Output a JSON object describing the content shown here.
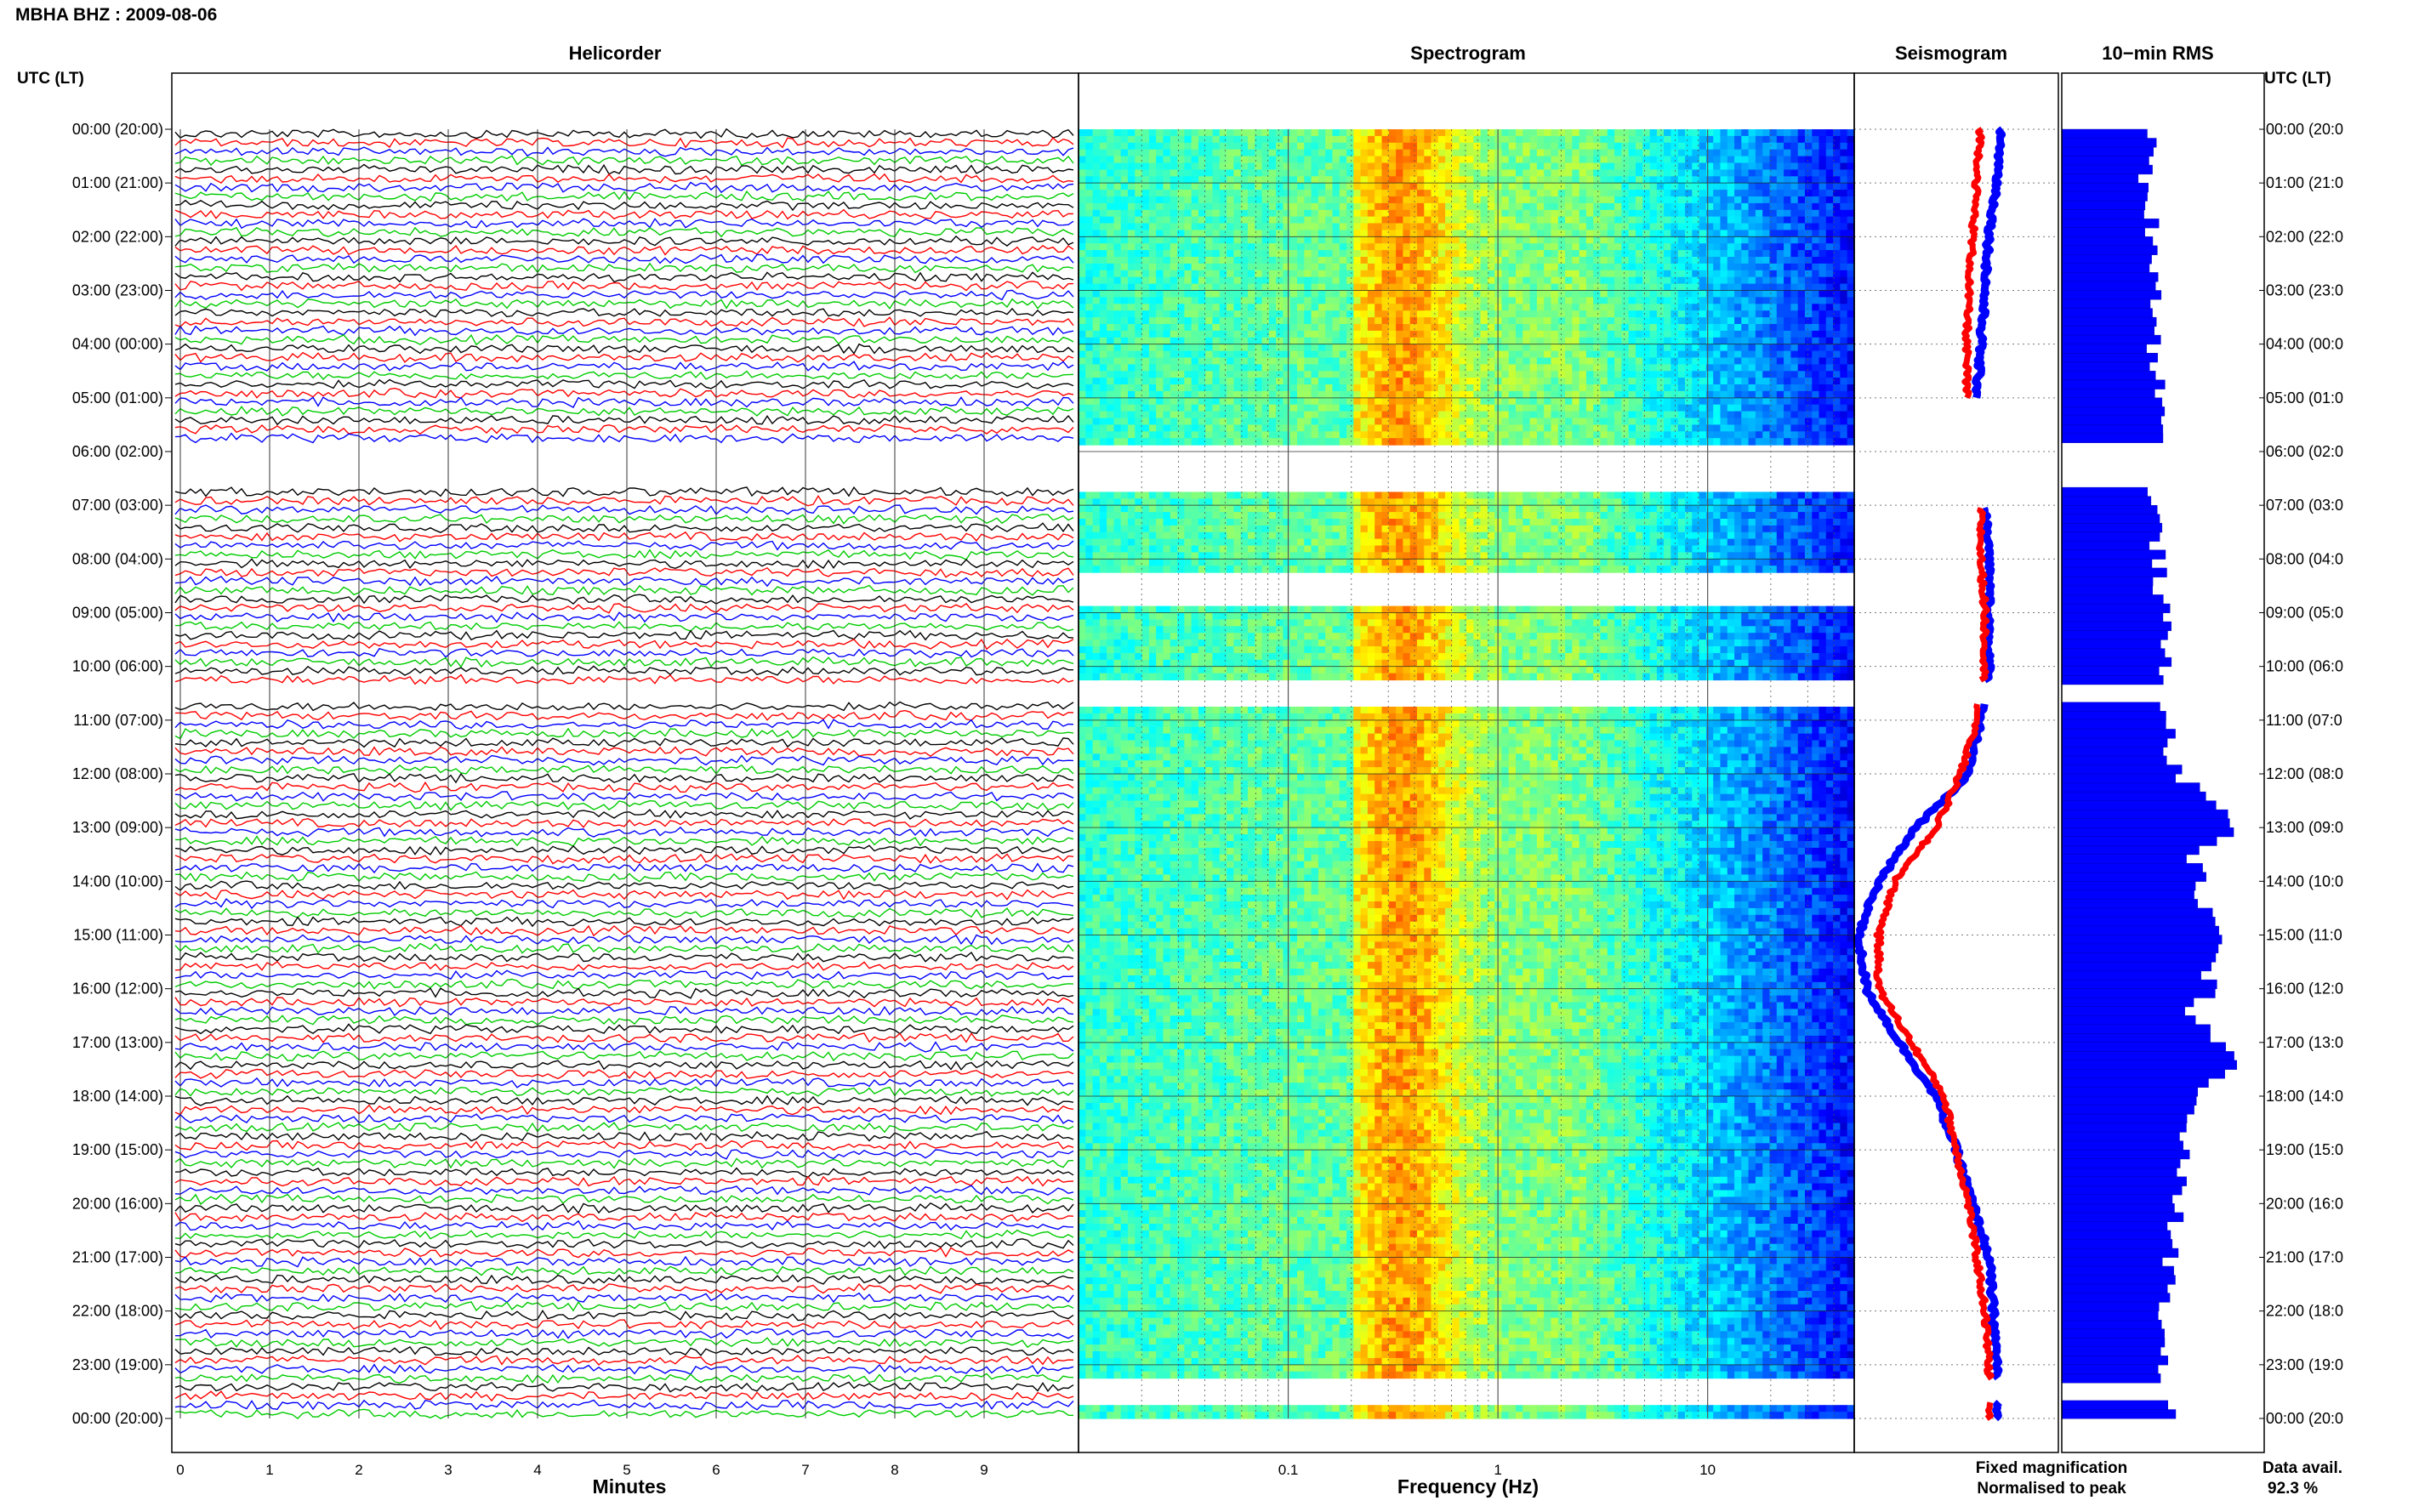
{
  "header": {
    "title": "MBHA BHZ : 2009-08-06",
    "utc_label_left": "UTC (LT)",
    "utc_label_right": "UTC (LT)"
  },
  "panels": {
    "helicorder": "Helicorder",
    "spectrogram": "Spectrogram",
    "seismogram": "Seismogram",
    "rms": "10−min RMS"
  },
  "footer": {
    "minutes_label": "Minutes",
    "frequency_label": "Frequency (Hz)",
    "legend_fixed": "Fixed magnification",
    "legend_normalised": "Normalised to peak",
    "data_avail_label": "Data avail.",
    "data_avail_value": "92.3 %"
  },
  "colors": {
    "helicorder_traces": [
      "#000000",
      "#ff0000",
      "#0000ff",
      "#00cc00"
    ],
    "fixed_magnification": "#0000ff",
    "normalised_to_peak": "#ff0000",
    "rms_bar": "#0000ff"
  },
  "chart_data": {
    "type": "composite",
    "title": "MBHA BHZ : 2009-08-06",
    "hour_labels_left": [
      "00:00 (20:00)",
      "01:00 (21:00)",
      "02:00 (22:00)",
      "03:00 (23:00)",
      "04:00 (00:00)",
      "05:00 (01:00)",
      "06:00 (02:00)",
      "07:00 (03:00)",
      "08:00 (04:00)",
      "09:00 (05:00)",
      "10:00 (06:00)",
      "11:00 (07:00)",
      "12:00 (08:00)",
      "13:00 (09:00)",
      "14:00 (10:00)",
      "15:00 (11:00)",
      "16:00 (12:00)",
      "17:00 (13:00)",
      "18:00 (14:00)",
      "19:00 (15:00)",
      "20:00 (16:00)",
      "21:00 (17:00)",
      "22:00 (18:00)",
      "23:00 (19:00)",
      "00:00 (20:00)"
    ],
    "hour_labels_right": [
      "00:00 (20:0",
      "01:00 (21:0",
      "02:00 (22:0",
      "03:00 (23:0",
      "04:00 (00:0",
      "05:00 (01:0",
      "06:00 (02:0",
      "07:00 (03:0",
      "08:00 (04:0",
      "09:00 (05:0",
      "10:00 (06:0",
      "11:00 (07:0",
      "12:00 (08:0",
      "13:00 (09:0",
      "14:00 (10:0",
      "15:00 (11:0",
      "16:00 (12:0",
      "17:00 (13:0",
      "18:00 (14:0",
      "19:00 (15:0",
      "20:00 (16:0",
      "21:00 (17:0",
      "22:00 (18:0",
      "23:00 (19:0",
      "00:00 (20:0"
    ],
    "helicorder": {
      "xlabel": "Minutes",
      "x_ticks": [
        "0",
        "1",
        "2",
        "3",
        "4",
        "5",
        "6",
        "7",
        "8",
        "9"
      ],
      "xlim": [
        0,
        10
      ],
      "data_gaps_hours": [
        [
          5.85,
          6.6
        ],
        [
          9.0,
          9.05
        ],
        [
          10.3,
          10.65
        ]
      ]
    },
    "spectrogram": {
      "xlabel": "Frequency (Hz)",
      "x_ticks": [
        "0.1",
        "1",
        "10"
      ],
      "x_scale": "log",
      "xlim": [
        0.01,
        50
      ],
      "data_gaps_hours": [
        [
          5.85,
          6.7
        ],
        [
          8.2,
          8.9
        ],
        [
          9.2,
          9.3
        ],
        [
          10.3,
          10.7
        ],
        [
          23.3,
          23.7
        ]
      ]
    },
    "seismogram_curves": {
      "hours": [
        0,
        1,
        2,
        3,
        4,
        5,
        6,
        7,
        8,
        9,
        10,
        11,
        12,
        13,
        14,
        15,
        16,
        17,
        18,
        19,
        20,
        21,
        22,
        23,
        24
      ],
      "fixed_magnification": [
        0.72,
        0.7,
        0.66,
        0.64,
        0.62,
        0.6,
        null,
        0.64,
        0.66,
        0.66,
        0.66,
        0.62,
        0.56,
        0.3,
        0.12,
        0.02,
        0.06,
        0.22,
        0.4,
        0.5,
        0.58,
        0.66,
        0.68,
        0.7,
        0.7
      ],
      "normalised_to_peak": [
        0.62,
        0.6,
        0.58,
        0.56,
        0.55,
        0.55,
        null,
        0.62,
        0.62,
        0.64,
        0.64,
        0.6,
        0.52,
        0.4,
        0.2,
        0.12,
        0.12,
        0.28,
        0.44,
        0.5,
        0.56,
        0.6,
        0.64,
        0.66,
        0.66
      ],
      "series": [
        {
          "name": "Fixed magnification",
          "color": "#0000ff"
        },
        {
          "name": "Normalised to peak",
          "color": "#ff0000"
        }
      ]
    },
    "rms_10min": {
      "hours": [
        0,
        1,
        2,
        3,
        4,
        5,
        7,
        8,
        9,
        10,
        11,
        12,
        12.5,
        13,
        13.5,
        14,
        14.5,
        15,
        15.5,
        16,
        16.5,
        17,
        17.5,
        18,
        18.5,
        19,
        19.5,
        20,
        20.5,
        21,
        21.5,
        22,
        22.5,
        23,
        23.5,
        24
      ],
      "values": [
        0.42,
        0.4,
        0.44,
        0.46,
        0.44,
        0.48,
        0.44,
        0.46,
        0.48,
        0.5,
        0.5,
        0.54,
        0.7,
        0.86,
        0.62,
        0.66,
        0.68,
        0.8,
        0.68,
        0.72,
        0.6,
        0.76,
        0.84,
        0.62,
        0.6,
        0.58,
        0.56,
        0.55,
        0.54,
        0.52,
        0.52,
        0.5,
        0.5,
        0.48,
        0.5,
        0.56
      ],
      "gaps_hours": [
        [
          5.85,
          6.7
        ],
        [
          10.3,
          10.7
        ],
        [
          23.3,
          23.7
        ]
      ]
    }
  }
}
